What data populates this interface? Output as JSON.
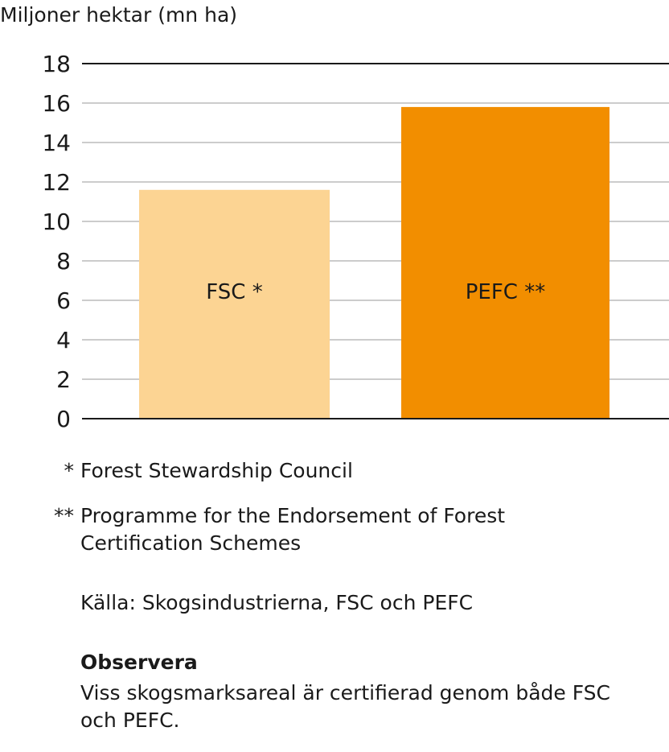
{
  "chart_data": {
    "type": "bar",
    "ylabel": "Miljoner hektar (mn ha)",
    "ylim": [
      0,
      18
    ],
    "yticks": [
      0,
      2,
      4,
      6,
      8,
      10,
      12,
      14,
      16,
      18
    ],
    "grid": true,
    "categories": [
      "FSC *",
      "PEFC **"
    ],
    "values": [
      11.6,
      15.8
    ],
    "colors": [
      "#fcd493",
      "#f28e00"
    ]
  },
  "notes": {
    "fsc_marker": "*",
    "fsc_text": "Forest Stewardship Council",
    "pefc_marker": "**",
    "pefc_text": "Programme for the Endorsement of Forest Certification Schemes",
    "source": "Källa: Skogsindustrierna, FSC och PEFC",
    "observe_title": "Observera",
    "observe_text": "Viss skogsmarksareal är certifierad genom både FSC och PEFC."
  }
}
